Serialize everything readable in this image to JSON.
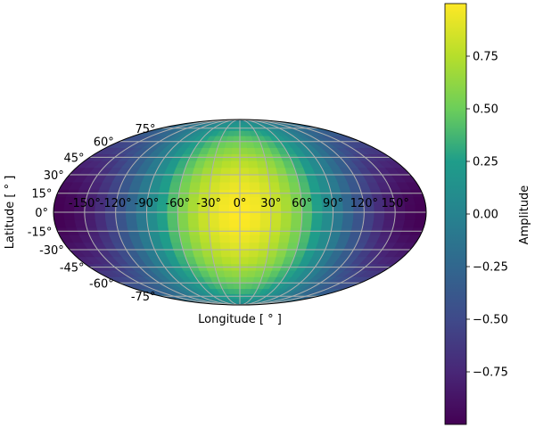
{
  "chart_data": {
    "type": "heatmap",
    "projection": "mollweide",
    "title": "",
    "xlabel": "Longitude [$^\\circ$]",
    "xlabel_display": "Longitude [ ° ]",
    "ylabel": "Latitude [$^\\circ$]",
    "ylabel_display": "Latitude [ ° ]",
    "xlim": [
      -180,
      180
    ],
    "ylim": [
      -90,
      90
    ],
    "grid": true,
    "colormap": "viridis",
    "field": "amplitude = cos(latitude) * cos(longitude)",
    "x_ticks": [
      -150,
      -120,
      -90,
      -60,
      -30,
      0,
      30,
      60,
      90,
      120,
      150
    ],
    "x_tick_labels": [
      "-150°",
      "-120°",
      "-90°",
      "-60°",
      "-30°",
      "0°",
      "30°",
      "60°",
      "90°",
      "120°",
      "150°"
    ],
    "y_ticks": [
      75,
      60,
      45,
      30,
      15,
      0,
      -15,
      -30,
      -45,
      -60,
      -75
    ],
    "y_tick_labels": [
      "75°",
      "60°",
      "45°",
      "30°",
      "15°",
      "0°",
      "-15°",
      "-30°",
      "-45°",
      "-60°",
      "-75°"
    ],
    "colorbar": {
      "label": "Amplitude",
      "range": [
        -1,
        1
      ],
      "ticks": [
        0.75,
        0.5,
        0.25,
        0.0,
        -0.25,
        -0.5,
        -0.75
      ],
      "tick_labels": [
        "0.75",
        "0.50",
        "0.25",
        "0.00",
        "−0.25",
        "−0.50",
        "−0.75"
      ]
    }
  },
  "colors": {
    "grid": "#b0b0b0",
    "outline": "#000000",
    "viridis_stops": [
      "#440154",
      "#482777",
      "#3f4a8a",
      "#31678e",
      "#26838f",
      "#1f9d8a",
      "#6cce5a",
      "#b6de2b",
      "#fee825"
    ]
  }
}
